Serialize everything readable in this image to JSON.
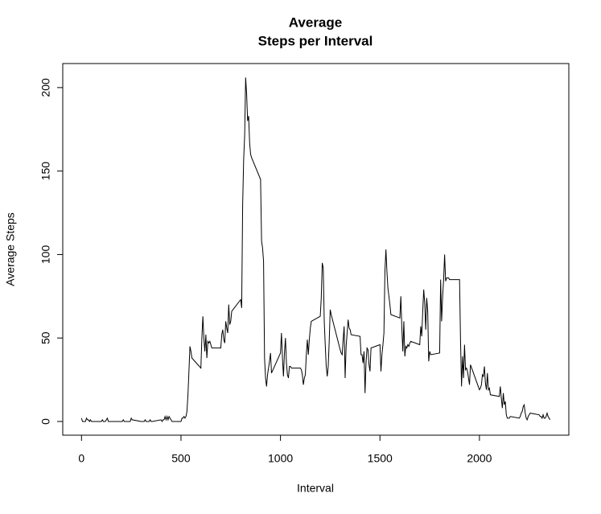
{
  "chart_data": {
    "type": "line",
    "title": [
      "Average",
      "Steps per Interval"
    ],
    "x_label": "Interval",
    "y_label": "Average Steps",
    "xlim": [
      -94.2,
      2449.2
    ],
    "ylim": [
      -8.2,
      214.4
    ],
    "xticks": [
      0,
      500,
      1000,
      1500,
      2000
    ],
    "yticks": [
      0,
      50,
      100,
      150,
      200
    ],
    "color": "#000000",
    "x": [
      0,
      5,
      10,
      15,
      20,
      25,
      30,
      35,
      40,
      45,
      50,
      55,
      100,
      105,
      110,
      115,
      120,
      125,
      130,
      135,
      140,
      145,
      150,
      155,
      200,
      205,
      210,
      215,
      220,
      225,
      230,
      235,
      240,
      245,
      250,
      255,
      300,
      305,
      310,
      315,
      320,
      325,
      330,
      335,
      340,
      345,
      350,
      355,
      400,
      405,
      410,
      415,
      420,
      425,
      430,
      435,
      440,
      445,
      450,
      455,
      500,
      505,
      510,
      515,
      520,
      525,
      530,
      535,
      540,
      545,
      550,
      555,
      600,
      605,
      610,
      615,
      620,
      625,
      630,
      635,
      640,
      645,
      650,
      655,
      700,
      705,
      710,
      715,
      720,
      725,
      730,
      735,
      740,
      745,
      750,
      755,
      800,
      805,
      810,
      815,
      820,
      825,
      830,
      835,
      840,
      845,
      850,
      855,
      900,
      905,
      910,
      915,
      920,
      925,
      930,
      935,
      940,
      945,
      950,
      955,
      1000,
      1005,
      1010,
      1015,
      1020,
      1025,
      1030,
      1035,
      1040,
      1045,
      1050,
      1055,
      1100,
      1105,
      1110,
      1115,
      1120,
      1125,
      1130,
      1135,
      1140,
      1145,
      1150,
      1155,
      1200,
      1205,
      1210,
      1215,
      1220,
      1225,
      1230,
      1235,
      1240,
      1245,
      1250,
      1255,
      1300,
      1305,
      1310,
      1315,
      1320,
      1325,
      1330,
      1335,
      1340,
      1345,
      1350,
      1355,
      1400,
      1405,
      1410,
      1415,
      1420,
      1425,
      1430,
      1435,
      1440,
      1445,
      1450,
      1455,
      1500,
      1505,
      1510,
      1515,
      1520,
      1525,
      1530,
      1535,
      1540,
      1545,
      1550,
      1555,
      1600,
      1605,
      1610,
      1615,
      1620,
      1625,
      1630,
      1635,
      1640,
      1645,
      1650,
      1655,
      1700,
      1705,
      1710,
      1715,
      1720,
      1725,
      1730,
      1735,
      1740,
      1745,
      1750,
      1755,
      1800,
      1805,
      1810,
      1815,
      1820,
      1825,
      1830,
      1835,
      1840,
      1845,
      1850,
      1855,
      1900,
      1905,
      1910,
      1915,
      1920,
      1925,
      1930,
      1935,
      1940,
      1945,
      1950,
      1955,
      2000,
      2005,
      2010,
      2015,
      2020,
      2025,
      2030,
      2035,
      2040,
      2045,
      2050,
      2055,
      2100,
      2105,
      2110,
      2115,
      2120,
      2125,
      2130,
      2135,
      2140,
      2145,
      2150,
      2155,
      2200,
      2205,
      2210,
      2215,
      2220,
      2225,
      2230,
      2235,
      2240,
      2245,
      2250,
      2255,
      2300,
      2305,
      2310,
      2315,
      2320,
      2325,
      2330,
      2335,
      2340,
      2345,
      2350,
      2355
    ],
    "values": [
      2,
      0,
      0,
      0,
      0,
      2,
      1,
      1,
      0,
      1,
      0,
      0,
      0,
      1,
      0,
      0,
      0,
      1,
      2,
      0,
      0,
      0,
      0,
      0,
      0,
      0,
      1,
      0,
      0,
      0,
      0,
      0,
      0,
      0,
      2,
      1,
      0,
      0,
      0,
      0,
      1,
      0,
      0,
      0,
      0,
      1,
      0,
      0,
      1,
      0,
      1,
      1,
      3,
      1,
      3,
      1,
      3,
      2,
      1,
      0,
      0,
      2,
      2,
      3,
      2,
      3,
      6,
      16,
      30,
      45,
      42,
      38,
      32,
      50,
      63,
      50,
      42,
      52,
      38,
      48,
      47,
      48,
      46,
      44,
      44,
      52,
      55,
      49,
      47,
      60,
      56,
      53,
      70,
      58,
      60,
      66,
      73,
      68,
      130,
      157,
      171,
      206,
      196,
      180,
      183,
      167,
      160,
      158,
      145,
      108,
      104,
      96,
      38,
      26,
      21,
      28,
      32,
      36,
      41,
      29,
      41,
      53,
      38,
      27,
      41,
      50,
      35,
      28,
      26,
      33,
      33,
      32,
      32,
      31,
      28,
      22,
      26,
      28,
      40,
      49,
      40,
      49,
      56,
      60,
      63,
      74,
      95,
      92,
      60,
      46,
      33,
      27,
      33,
      48,
      67,
      64,
      43,
      41,
      40,
      49,
      57,
      26,
      45,
      53,
      61,
      56,
      55,
      52,
      51,
      40,
      40,
      35,
      42,
      17,
      35,
      44,
      43,
      34,
      30,
      44,
      46,
      30,
      40,
      46,
      53,
      90,
      103,
      90,
      80,
      75,
      70,
      64,
      62,
      75,
      56,
      42,
      60,
      39,
      45,
      44,
      46,
      45,
      47,
      48,
      46,
      57,
      51,
      66,
      79,
      71,
      55,
      74,
      66,
      36,
      42,
      40,
      41,
      85,
      60,
      75,
      85,
      100,
      84,
      86,
      86,
      86,
      85,
      85,
      85,
      48,
      21,
      39,
      26,
      46,
      31,
      32,
      30,
      26,
      22,
      34,
      19,
      20,
      22,
      28,
      27,
      33,
      23,
      19,
      29,
      19,
      20,
      16,
      15,
      21,
      14,
      8,
      17,
      10,
      12,
      4,
      2,
      2,
      2,
      3,
      2,
      3,
      5,
      6,
      9,
      10,
      5,
      2,
      1,
      3,
      4,
      5,
      4,
      3,
      3,
      2,
      4,
      2,
      2,
      3,
      5,
      3,
      2,
      1
    ]
  }
}
